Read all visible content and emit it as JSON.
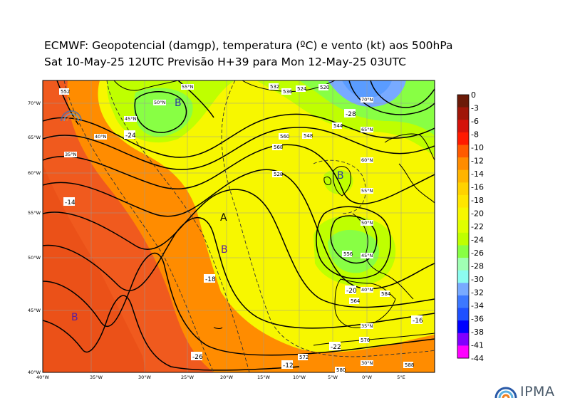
{
  "title_line1": "ECMWF:  Geopotencial (damgp), temperatura (ºC) e vento (kt) aos 500hPa",
  "title_line2": "Sat 10-May-25 12UTC Previsão H+39 para Mon 12-May-25 03UTC",
  "logo_text": "IPMA",
  "colors": {
    "warm_red": "#f05a1e",
    "orange": "#ff8c00",
    "yellow": "#ffe000",
    "light_green": "#bfff00",
    "green": "#88ff44",
    "blue": "#5a9cff"
  },
  "lon_labels": [
    "40°W",
    "35°W",
    "30°W",
    "25°W",
    "20°W",
    "15°W",
    "10°W",
    "5°W",
    "0°W",
    "5°E"
  ],
  "lat_labels": [
    "70°W",
    "65°W",
    "60°W",
    "55°W",
    "50°W",
    "45°W",
    "40°W"
  ],
  "inner_grid_labels": [
    "55°N",
    "50°N",
    "45°N",
    "40°N",
    "35°N",
    "65°N",
    "70°N",
    "60°N",
    "55°N",
    "50°N",
    "45°N",
    "40°N",
    "35°N",
    "30°N"
  ],
  "contour_labels": [
    "552",
    "528",
    "544",
    "564",
    "560",
    "556",
    "568",
    "576",
    "580",
    "572",
    "548",
    "536",
    "532",
    "524",
    "520",
    "584",
    "588"
  ],
  "temp_labels": [
    "-14",
    "-16",
    "-18",
    "-20",
    "-24",
    "-28",
    "-12",
    "-22",
    "-26"
  ],
  "pressure_centers": [
    {
      "label": "B",
      "type": "low"
    },
    {
      "label": "B",
      "type": "low"
    },
    {
      "label": "A",
      "type": "high"
    },
    {
      "label": "B",
      "type": "low"
    },
    {
      "label": "B",
      "type": "low"
    }
  ],
  "colorbar": {
    "labels": [
      "0",
      "-3",
      "-6",
      "-8",
      "-10",
      "-12",
      "-14",
      "-16",
      "-18",
      "-20",
      "-22",
      "-24",
      "-26",
      "-28",
      "-30",
      "-32",
      "-34",
      "-36",
      "-38",
      "-41",
      "-44"
    ],
    "colors": [
      "#6b1a08",
      "#a01608",
      "#d4120a",
      "#ff1a00",
      "#ff5a00",
      "#ff8c00",
      "#ffb400",
      "#ffd200",
      "#ffe600",
      "#f7f700",
      "#e0ff00",
      "#bfff00",
      "#88ff44",
      "#a0ffb4",
      "#8cfcf0",
      "#78aaff",
      "#3c78ff",
      "#1e50ff",
      "#0000ff",
      "#8000ff",
      "#ff00ff"
    ]
  }
}
